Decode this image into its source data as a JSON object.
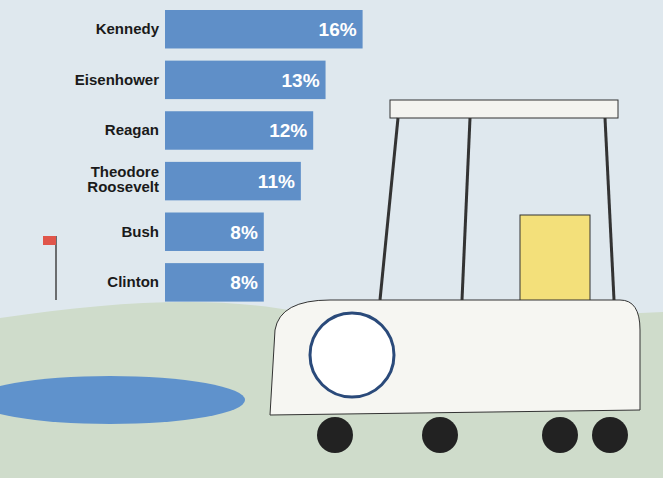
{
  "chart_data": {
    "type": "bar",
    "orientation": "horizontal",
    "categories": [
      "Kennedy",
      "Eisenhower",
      "Reagan",
      "Theodore Roosevelt",
      "Bush",
      "Clinton"
    ],
    "values": [
      16,
      13,
      12,
      11,
      8,
      8
    ],
    "value_labels": [
      "16%",
      "13%",
      "12%",
      "11%",
      "8%",
      "8%"
    ],
    "color": "#5f8fc8",
    "data_labels": true,
    "tick_labels": "y",
    "grid": false
  }
}
